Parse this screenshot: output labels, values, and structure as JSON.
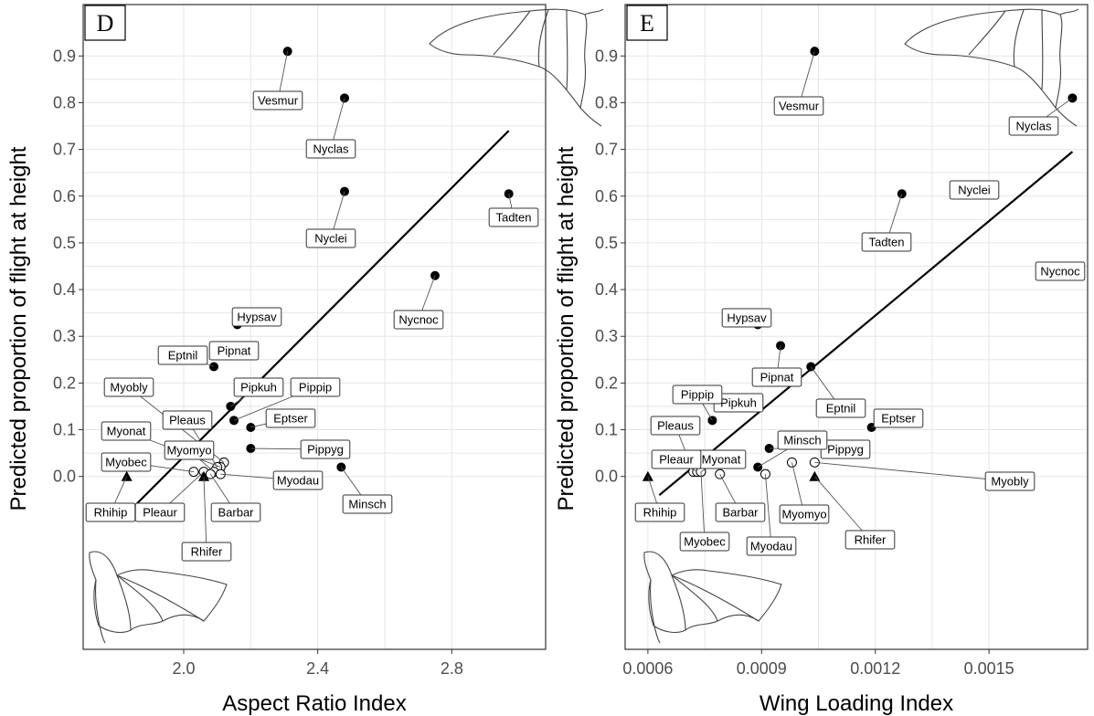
{
  "chart_data": [
    {
      "type": "scatter",
      "panel_label": "D",
      "xlabel": "Aspect Ratio Index",
      "ylabel": "Predicted proportion of flight at height",
      "xlim": [
        1.7,
        3.08
      ],
      "ylim": [
        -0.37,
        1.01
      ],
      "xticks": [
        2.0,
        2.4,
        2.8
      ],
      "xtick_labels": [
        "2.0",
        "2.4",
        "2.8"
      ],
      "yticks": [
        0.0,
        0.1,
        0.2,
        0.3,
        0.4,
        0.5,
        0.6,
        0.7,
        0.8,
        0.9
      ],
      "ytick_labels": [
        "0.0",
        "0.1",
        "0.2",
        "0.3",
        "0.4",
        "0.5",
        "0.6",
        "0.7",
        "0.8",
        "0.9"
      ],
      "fit_line": {
        "x": [
          1.83,
          2.97
        ],
        "y": [
          -0.08,
          0.74
        ]
      },
      "points": [
        {
          "label": "Vesmur",
          "x": 2.31,
          "y": 0.91,
          "marker": "filled-circle"
        },
        {
          "label": "Nyclas",
          "x": 2.48,
          "y": 0.81,
          "marker": "filled-circle"
        },
        {
          "label": "Nyclei",
          "x": 2.48,
          "y": 0.61,
          "marker": "filled-circle"
        },
        {
          "label": "Tadten",
          "x": 2.97,
          "y": 0.605,
          "marker": "filled-circle"
        },
        {
          "label": "Nycnoc",
          "x": 2.75,
          "y": 0.43,
          "marker": "filled-circle"
        },
        {
          "label": "Hypsav",
          "x": 2.16,
          "y": 0.325,
          "marker": "filled-circle"
        },
        {
          "label": "Pipnat",
          "x": 2.13,
          "y": 0.28,
          "marker": "filled-circle"
        },
        {
          "label": "Eptnil",
          "x": 2.09,
          "y": 0.235,
          "marker": "filled-circle"
        },
        {
          "label": "Pipkuh",
          "x": 2.14,
          "y": 0.15,
          "marker": "filled-circle"
        },
        {
          "label": "Pippip",
          "x": 2.15,
          "y": 0.12,
          "marker": "filled-circle"
        },
        {
          "label": "Eptser",
          "x": 2.2,
          "y": 0.105,
          "marker": "filled-circle"
        },
        {
          "label": "Pippyg",
          "x": 2.2,
          "y": 0.06,
          "marker": "filled-circle"
        },
        {
          "label": "Minsch",
          "x": 2.47,
          "y": 0.02,
          "marker": "filled-circle"
        },
        {
          "label": "Myobly",
          "x": 2.12,
          "y": 0.03,
          "marker": "open-circle"
        },
        {
          "label": "Myonat",
          "x": 2.11,
          "y": 0.02,
          "marker": "open-circle"
        },
        {
          "label": "Pleaus",
          "x": 2.1,
          "y": 0.02,
          "marker": "open-circle"
        },
        {
          "label": "Myomyo",
          "x": 2.09,
          "y": 0.01,
          "marker": "open-circle"
        },
        {
          "label": "Myobec",
          "x": 2.03,
          "y": 0.01,
          "marker": "open-circle"
        },
        {
          "label": "Myodau",
          "x": 2.11,
          "y": 0.005,
          "marker": "open-circle"
        },
        {
          "label": "Pleaur",
          "x": 2.06,
          "y": 0.01,
          "marker": "open-circle"
        },
        {
          "label": "Barbar",
          "x": 2.08,
          "y": 0.005,
          "marker": "open-circle"
        },
        {
          "label": "Rhihip",
          "x": 1.83,
          "y": 0.0,
          "marker": "triangle"
        },
        {
          "label": "Rhifer",
          "x": 2.06,
          "y": 0.0,
          "marker": "triangle"
        }
      ]
    },
    {
      "type": "scatter",
      "panel_label": "E",
      "xlabel": "Wing Loading Index",
      "ylabel": "Predicted proportion of flight at height",
      "xlim": [
        0.00054,
        0.00176
      ],
      "ylim": [
        -0.37,
        1.01
      ],
      "xticks": [
        0.0006,
        0.0009,
        0.0012,
        0.0015
      ],
      "xtick_labels": [
        "0.0006",
        "0.0009",
        "0.0012",
        "0.0015"
      ],
      "yticks": [
        0.0,
        0.1,
        0.2,
        0.3,
        0.4,
        0.5,
        0.6,
        0.7,
        0.8,
        0.9
      ],
      "ytick_labels": [
        "0.0",
        "0.1",
        "0.2",
        "0.3",
        "0.4",
        "0.5",
        "0.6",
        "0.7",
        "0.8",
        "0.9"
      ],
      "fit_line": {
        "x": [
          0.00063,
          0.00172
        ],
        "y": [
          -0.04,
          0.695
        ]
      },
      "points": [
        {
          "label": "Vesmur",
          "x": 0.00104,
          "y": 0.91,
          "marker": "filled-circle"
        },
        {
          "label": "Nyclas",
          "x": 0.00172,
          "y": 0.81,
          "marker": "filled-circle"
        },
        {
          "label": "Nyclei",
          "x": 0.00141,
          "y": 0.615,
          "marker": "filled-circle"
        },
        {
          "label": "Tadten",
          "x": 0.00127,
          "y": 0.605,
          "marker": "filled-circle"
        },
        {
          "label": "Nycnoc",
          "x": 0.00167,
          "y": 0.43,
          "marker": "filled-circle"
        },
        {
          "label": "Hypsav",
          "x": 0.00089,
          "y": 0.325,
          "marker": "filled-circle"
        },
        {
          "label": "Pipnat",
          "x": 0.00095,
          "y": 0.28,
          "marker": "filled-circle"
        },
        {
          "label": "Eptnil",
          "x": 0.00103,
          "y": 0.235,
          "marker": "filled-circle"
        },
        {
          "label": "Pipkuh",
          "x": 0.00083,
          "y": 0.15,
          "marker": "filled-circle"
        },
        {
          "label": "Pippip",
          "x": 0.00077,
          "y": 0.12,
          "marker": "filled-circle"
        },
        {
          "label": "Eptser",
          "x": 0.00119,
          "y": 0.105,
          "marker": "filled-circle"
        },
        {
          "label": "Pippyg",
          "x": 0.00092,
          "y": 0.06,
          "marker": "filled-circle"
        },
        {
          "label": "Minsch",
          "x": 0.00089,
          "y": 0.02,
          "marker": "filled-circle"
        },
        {
          "label": "Myobly",
          "x": 0.00104,
          "y": 0.03,
          "marker": "open-circle"
        },
        {
          "label": "Myomyo",
          "x": 0.00098,
          "y": 0.03,
          "marker": "open-circle"
        },
        {
          "label": "Myonat",
          "x": 0.00074,
          "y": 0.01,
          "marker": "open-circle"
        },
        {
          "label": "Pleaus",
          "x": 0.00072,
          "y": 0.01,
          "marker": "open-circle"
        },
        {
          "label": "Pleaur",
          "x": 0.00073,
          "y": 0.01,
          "marker": "open-circle"
        },
        {
          "label": "Myobec",
          "x": 0.00074,
          "y": 0.01,
          "marker": "open-circle"
        },
        {
          "label": "Barbar",
          "x": 0.00079,
          "y": 0.005,
          "marker": "open-circle"
        },
        {
          "label": "Myodau",
          "x": 0.00091,
          "y": 0.005,
          "marker": "open-circle"
        },
        {
          "label": "Rhihip",
          "x": 0.0006,
          "y": 0.0,
          "marker": "triangle"
        },
        {
          "label": "Rhifer",
          "x": 0.00104,
          "y": 0.0,
          "marker": "triangle"
        }
      ]
    }
  ]
}
